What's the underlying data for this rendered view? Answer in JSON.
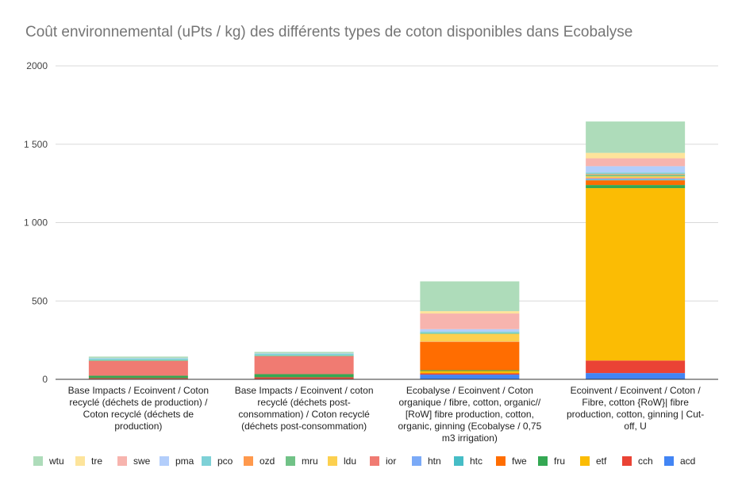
{
  "chart_data": {
    "type": "bar",
    "stacked": true,
    "title": "Coût environnemental (uPts / kg) des différents types de coton disponibles dans Ecobalyse",
    "xlabel": "",
    "ylabel": "",
    "ylim": [
      0,
      2000
    ],
    "yticks": [
      0,
      500,
      1000,
      1500,
      2000
    ],
    "ytick_labels": [
      "0",
      "500",
      "1 000",
      "1 500",
      "2000"
    ],
    "grid": true,
    "legend_position": "bottom",
    "categories": [
      [
        "Base Impacts / Ecoinvent / Coton",
        "recyclé (déchets de production) /",
        "Coton recyclé (déchets de",
        "production)"
      ],
      [
        "Base Impacts / Ecoinvent / coton",
        "recyclé (déchets post-",
        "consommation) / Coton recyclé",
        "(déchets post-consommation)"
      ],
      [
        "Ecobalyse / Ecoinvent / Coton",
        "organique / fibre, cotton, organic//",
        "[RoW] fibre production, cotton,",
        "organic, ginning (Ecobalyse / 0,75",
        "m3 irrigation)"
      ],
      [
        "Ecoinvent / Ecoinvent / Coton /",
        "Fibre, cotton {RoW}| fibre",
        "production, cotton, ginning | Cut-",
        "off, U"
      ]
    ],
    "series": [
      {
        "name": "acd",
        "color": "#4285f4",
        "values": [
          3,
          3,
          30,
          40
        ]
      },
      {
        "name": "cch",
        "color": "#ea4335",
        "values": [
          5,
          10,
          8,
          80
        ]
      },
      {
        "name": "etf",
        "color": "#fbbc04",
        "values": [
          0,
          0,
          15,
          1100
        ]
      },
      {
        "name": "fru",
        "color": "#34a853",
        "values": [
          15,
          20,
          5,
          20
        ]
      },
      {
        "name": "fwe",
        "color": "#ff6d01",
        "values": [
          0,
          0,
          180,
          30
        ]
      },
      {
        "name": "htc",
        "color": "#46bdc6",
        "values": [
          0,
          0,
          0,
          5
        ]
      },
      {
        "name": "htn",
        "color": "#7baaf7",
        "values": [
          0,
          0,
          0,
          5
        ]
      },
      {
        "name": "ior",
        "color": "#f07b72",
        "values": [
          95,
          115,
          2,
          5
        ]
      },
      {
        "name": "ldu",
        "color": "#fcd04f",
        "values": [
          0,
          0,
          50,
          10
        ]
      },
      {
        "name": "mru",
        "color": "#71c287",
        "values": [
          5,
          5,
          5,
          10
        ]
      },
      {
        "name": "ozd",
        "color": "#ff994d",
        "values": [
          0,
          0,
          0,
          5
        ]
      },
      {
        "name": "pco",
        "color": "#7ed1d7",
        "values": [
          10,
          10,
          10,
          10
        ]
      },
      {
        "name": "pma",
        "color": "#b3cefb",
        "values": [
          2,
          2,
          15,
          40
        ]
      },
      {
        "name": "swe",
        "color": "#f7b4ae",
        "values": [
          0,
          0,
          100,
          50
        ]
      },
      {
        "name": "tre",
        "color": "#fde49b",
        "values": [
          0,
          0,
          15,
          35
        ]
      },
      {
        "name": "wtu",
        "color": "#aedcba",
        "values": [
          10,
          10,
          190,
          200
        ]
      }
    ],
    "legend_order": [
      "wtu",
      "tre",
      "swe",
      "pma",
      "pco",
      "ozd",
      "mru",
      "ldu",
      "ior",
      "htn",
      "htc",
      "fwe",
      "fru",
      "etf",
      "cch",
      "acd"
    ]
  }
}
